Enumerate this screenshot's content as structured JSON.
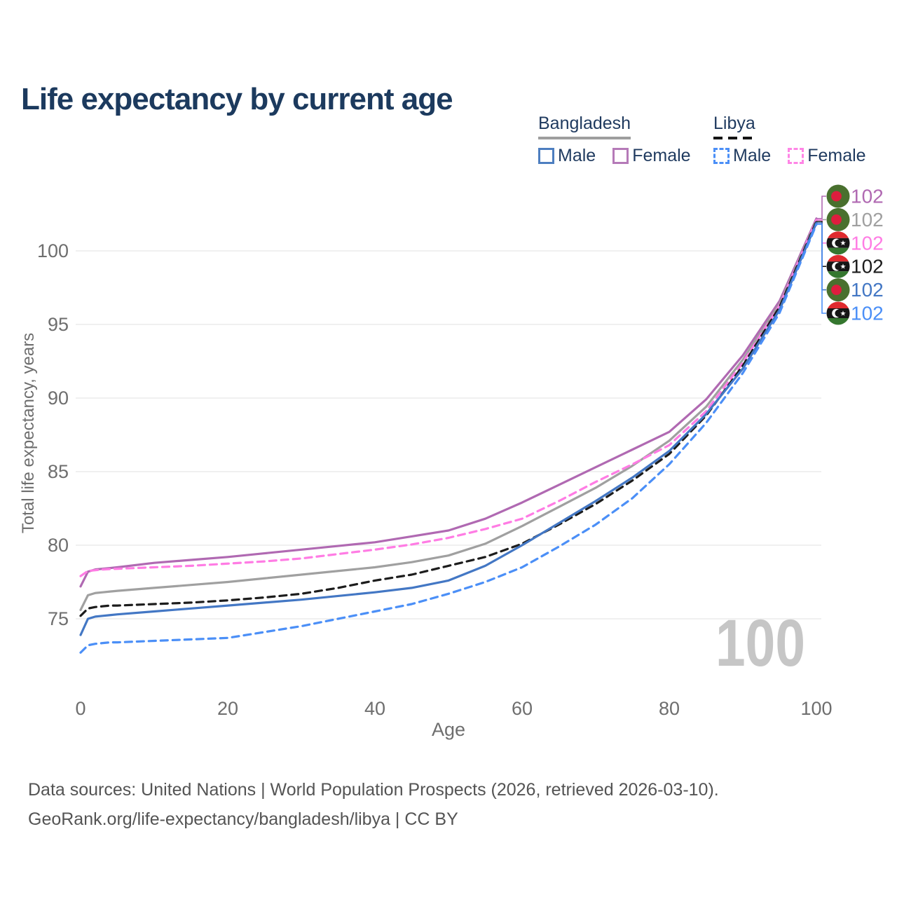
{
  "title": "Life expectancy by current age",
  "legend": {
    "groups": [
      {
        "name": "Bangladesh",
        "line_style": "solid",
        "underline_color": "#9e9e9e",
        "items": [
          {
            "label": "Male",
            "color": "#4d7ec0"
          },
          {
            "label": "Female",
            "color": "#b57ab8"
          }
        ]
      },
      {
        "name": "Libya",
        "line_style": "dashed",
        "underline_color": "#141414",
        "items": [
          {
            "label": "Male",
            "color": "#4b8ff7"
          },
          {
            "label": "Female",
            "color": "#ff85e6"
          }
        ]
      }
    ]
  },
  "watermark": "100",
  "chart_data": {
    "type": "line",
    "title": "Life expectancy by current age",
    "xlabel": "Age",
    "ylabel": "Total life expectancy, years",
    "x_ticks": [
      0,
      20,
      40,
      60,
      80,
      100
    ],
    "y_ticks": [
      75,
      80,
      85,
      90,
      95,
      100
    ],
    "xlim": [
      0,
      100
    ],
    "ylim": [
      72,
      103
    ],
    "grid": "horizontal",
    "legend_position": "top-right",
    "x": [
      0,
      1,
      2,
      3,
      4,
      5,
      10,
      15,
      20,
      25,
      30,
      35,
      40,
      45,
      50,
      55,
      60,
      65,
      70,
      75,
      80,
      85,
      90,
      95,
      100
    ],
    "series": [
      {
        "name": "Bangladesh Female",
        "country": "Bangladesh",
        "sex": "Female",
        "color": "#b069b2",
        "dashed": false,
        "flag": "bd",
        "end_label": "102",
        "values": [
          77.2,
          78.2,
          78.35,
          78.4,
          78.45,
          78.5,
          78.8,
          79.0,
          79.2,
          79.45,
          79.7,
          79.95,
          80.2,
          80.6,
          81.0,
          81.8,
          82.9,
          84.1,
          85.3,
          86.5,
          87.7,
          89.9,
          92.9,
          96.6,
          102.2
        ]
      },
      {
        "name": "Bangladesh Total",
        "country": "Bangladesh",
        "sex": "Both",
        "color": "#a0a0a0",
        "dashed": false,
        "flag": "bd",
        "end_label": "102",
        "values": [
          75.6,
          76.6,
          76.75,
          76.8,
          76.85,
          76.9,
          77.1,
          77.3,
          77.5,
          77.75,
          78.0,
          78.25,
          78.5,
          78.85,
          79.3,
          80.1,
          81.3,
          82.6,
          83.9,
          85.4,
          87.1,
          89.4,
          92.6,
          96.4,
          102.1
        ]
      },
      {
        "name": "Libya Female",
        "country": "Libya",
        "sex": "Female",
        "color": "#ff7ce4",
        "dashed": true,
        "flag": "ly",
        "end_label": "102",
        "values": [
          77.9,
          78.25,
          78.3,
          78.35,
          78.38,
          78.4,
          78.5,
          78.6,
          78.75,
          78.9,
          79.1,
          79.4,
          79.7,
          80.05,
          80.5,
          81.1,
          81.8,
          83.0,
          84.3,
          85.5,
          86.8,
          89.1,
          92.4,
          96.3,
          102.1
        ]
      },
      {
        "name": "Libya Total",
        "country": "Libya",
        "sex": "Both",
        "color": "#1c1c1c",
        "dashed": true,
        "flag": "ly",
        "end_label": "102",
        "values": [
          75.2,
          75.7,
          75.8,
          75.85,
          75.9,
          75.9,
          76.0,
          76.1,
          76.25,
          76.45,
          76.7,
          77.1,
          77.6,
          78.0,
          78.6,
          79.2,
          80.1,
          81.4,
          82.8,
          84.4,
          86.2,
          88.8,
          92.2,
          96.2,
          102.0
        ]
      },
      {
        "name": "Bangladesh Male",
        "country": "Bangladesh",
        "sex": "Male",
        "color": "#4377c4",
        "dashed": false,
        "flag": "bd",
        "end_label": "102",
        "values": [
          73.9,
          75.0,
          75.15,
          75.2,
          75.25,
          75.3,
          75.5,
          75.7,
          75.9,
          76.1,
          76.3,
          76.55,
          76.8,
          77.1,
          77.6,
          78.6,
          80.0,
          81.5,
          83.0,
          84.6,
          86.4,
          88.9,
          92.0,
          96.0,
          101.9
        ]
      },
      {
        "name": "Libya Male",
        "country": "Libya",
        "sex": "Male",
        "color": "#4b8ff7",
        "dashed": true,
        "flag": "ly",
        "end_label": "102",
        "values": [
          72.7,
          73.2,
          73.3,
          73.35,
          73.4,
          73.4,
          73.5,
          73.6,
          73.7,
          74.1,
          74.5,
          75.0,
          75.5,
          76.0,
          76.7,
          77.5,
          78.5,
          79.9,
          81.4,
          83.2,
          85.5,
          88.3,
          91.7,
          95.8,
          101.8
        ]
      }
    ]
  },
  "footer": {
    "line1": "Data sources: United Nations | World Population Prospects (2026, retrieved 2026-03-10).",
    "line2": "GeoRank.org/life-expectancy/bangladesh/libya | CC BY"
  }
}
